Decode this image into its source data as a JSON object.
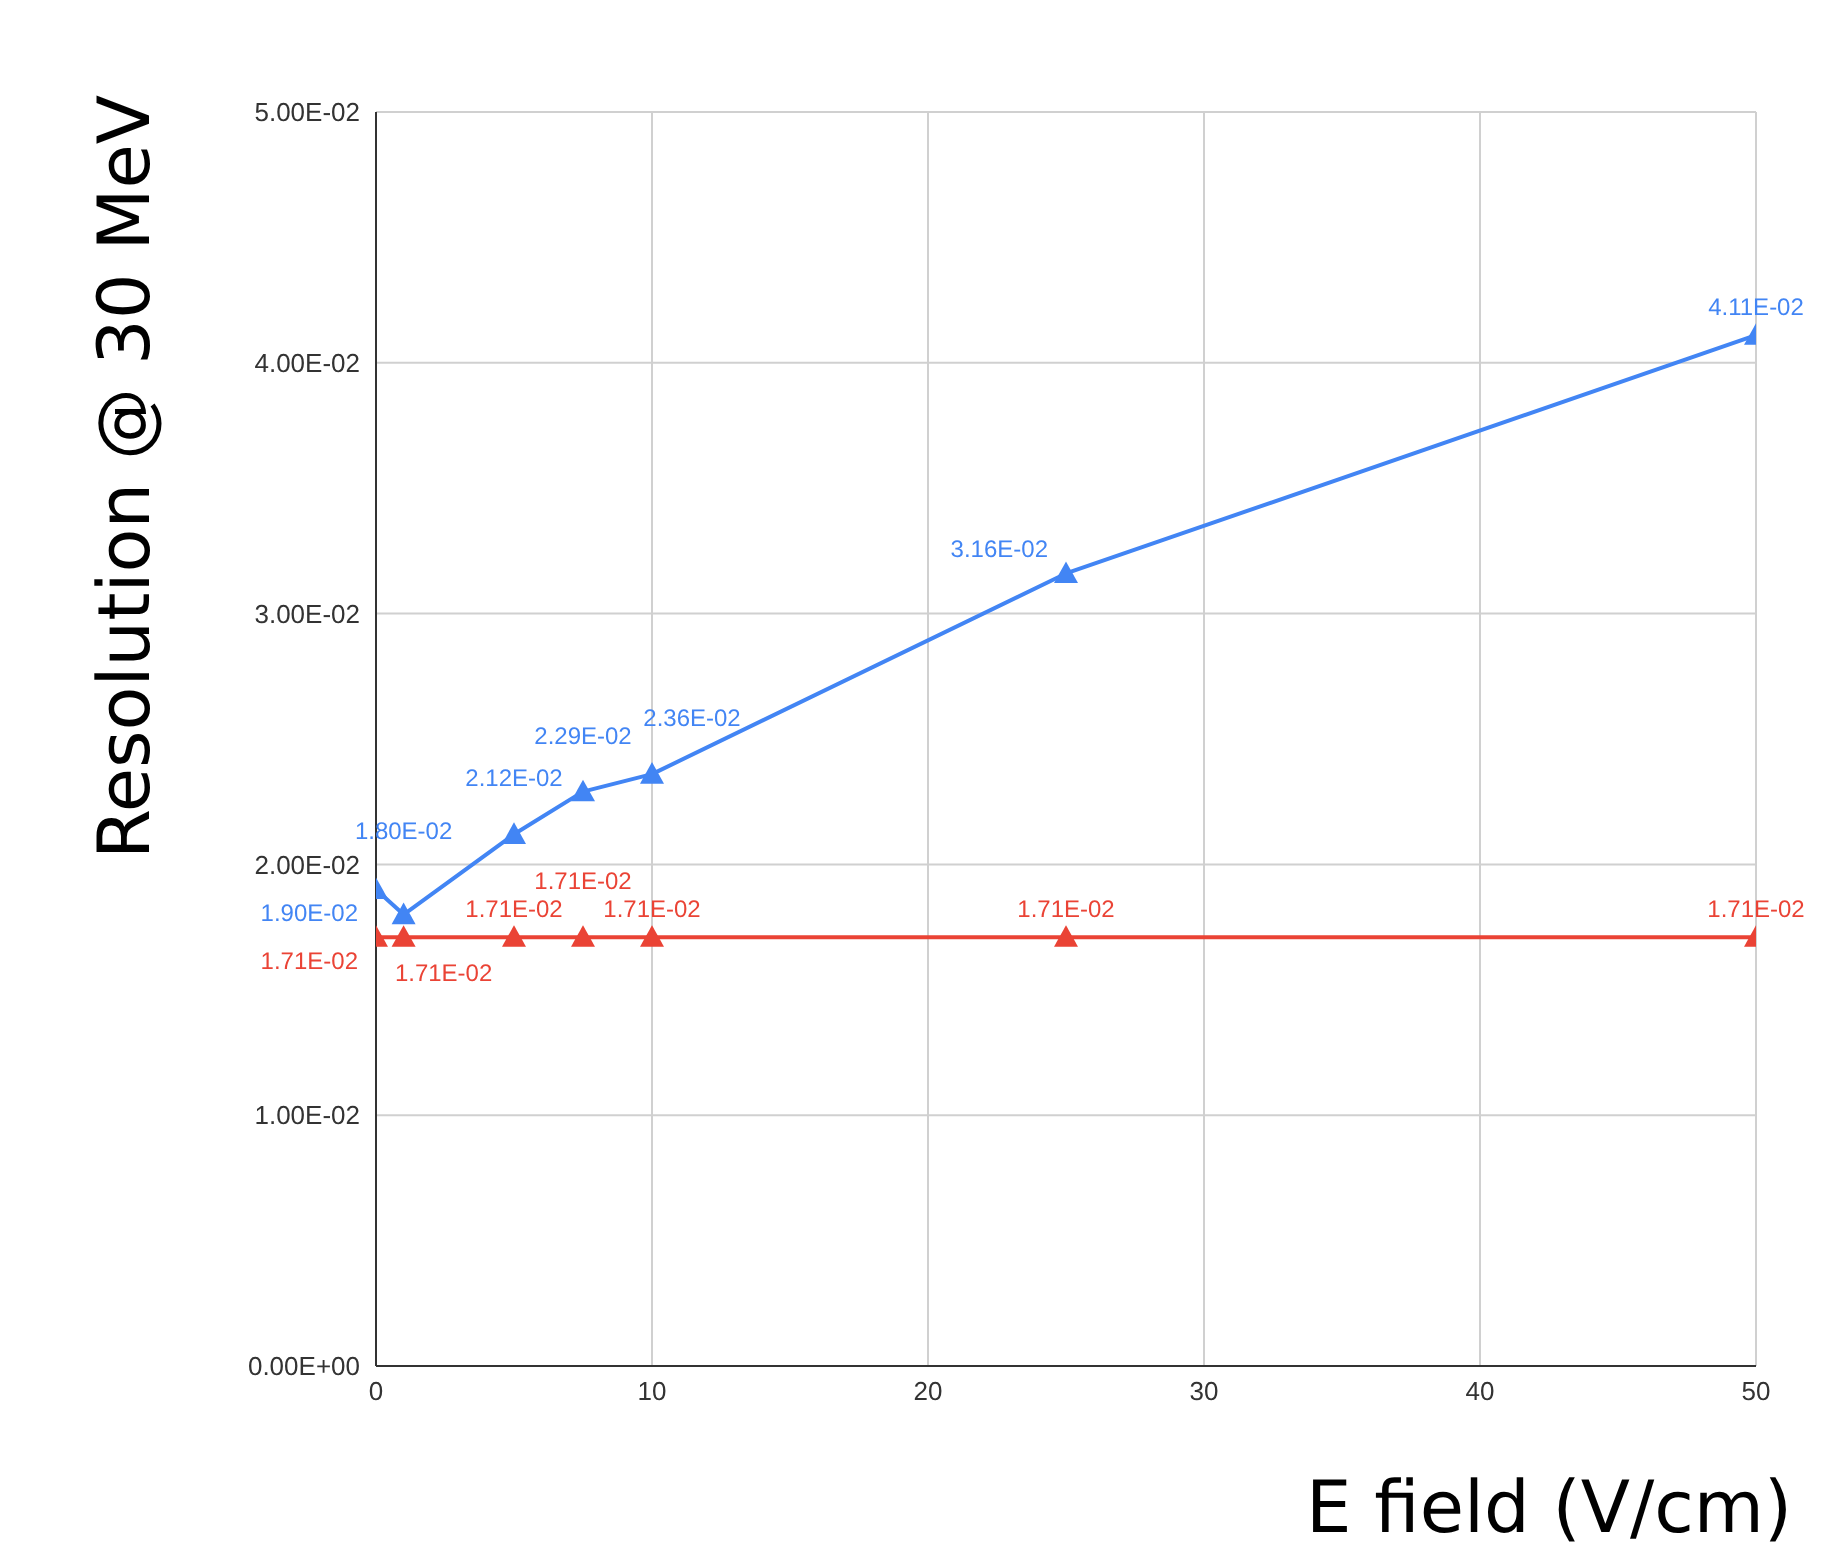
{
  "chart_data": {
    "type": "line",
    "xlabel": "E field (V/cm)",
    "ylabel": "Resolution @ 30 MeV",
    "x": [
      0,
      1,
      5,
      7.5,
      10,
      25,
      50
    ],
    "series": [
      {
        "color": "#4285f4",
        "values": [
          0.019,
          0.018,
          0.0212,
          0.0229,
          0.0236,
          0.0316,
          0.0411
        ],
        "value_labels": [
          "1.90E-02",
          "1.80E-02",
          "2.12E-02",
          "2.29E-02",
          "2.36E-02",
          "3.16E-02",
          "4.11E-02"
        ]
      },
      {
        "color": "#ea4335",
        "values": [
          0.0171,
          0.0171,
          0.0171,
          0.0171,
          0.0171,
          0.0171,
          0.0171
        ],
        "value_labels": [
          "1.71E-02",
          "1.71E-02",
          "1.71E-02",
          "1.71E-02",
          "1.71E-02",
          "1.71E-02",
          "1.71E-02"
        ]
      }
    ],
    "xlim": [
      0,
      50
    ],
    "xticks": [
      0,
      10,
      20,
      30,
      40,
      50
    ],
    "ylim": [
      0,
      0.05
    ],
    "yticks": [
      {
        "value": 0,
        "label": "0.00E+00"
      },
      {
        "value": 0.01,
        "label": "1.00E-02"
      },
      {
        "value": 0.02,
        "label": "2.00E-02"
      },
      {
        "value": 0.03,
        "label": "3.00E-02"
      },
      {
        "value": 0.04,
        "label": "4.00E-02"
      },
      {
        "value": 0.05,
        "label": "5.00E-02"
      }
    ],
    "grid": true,
    "marker": "triangle",
    "line_style": "solid"
  }
}
